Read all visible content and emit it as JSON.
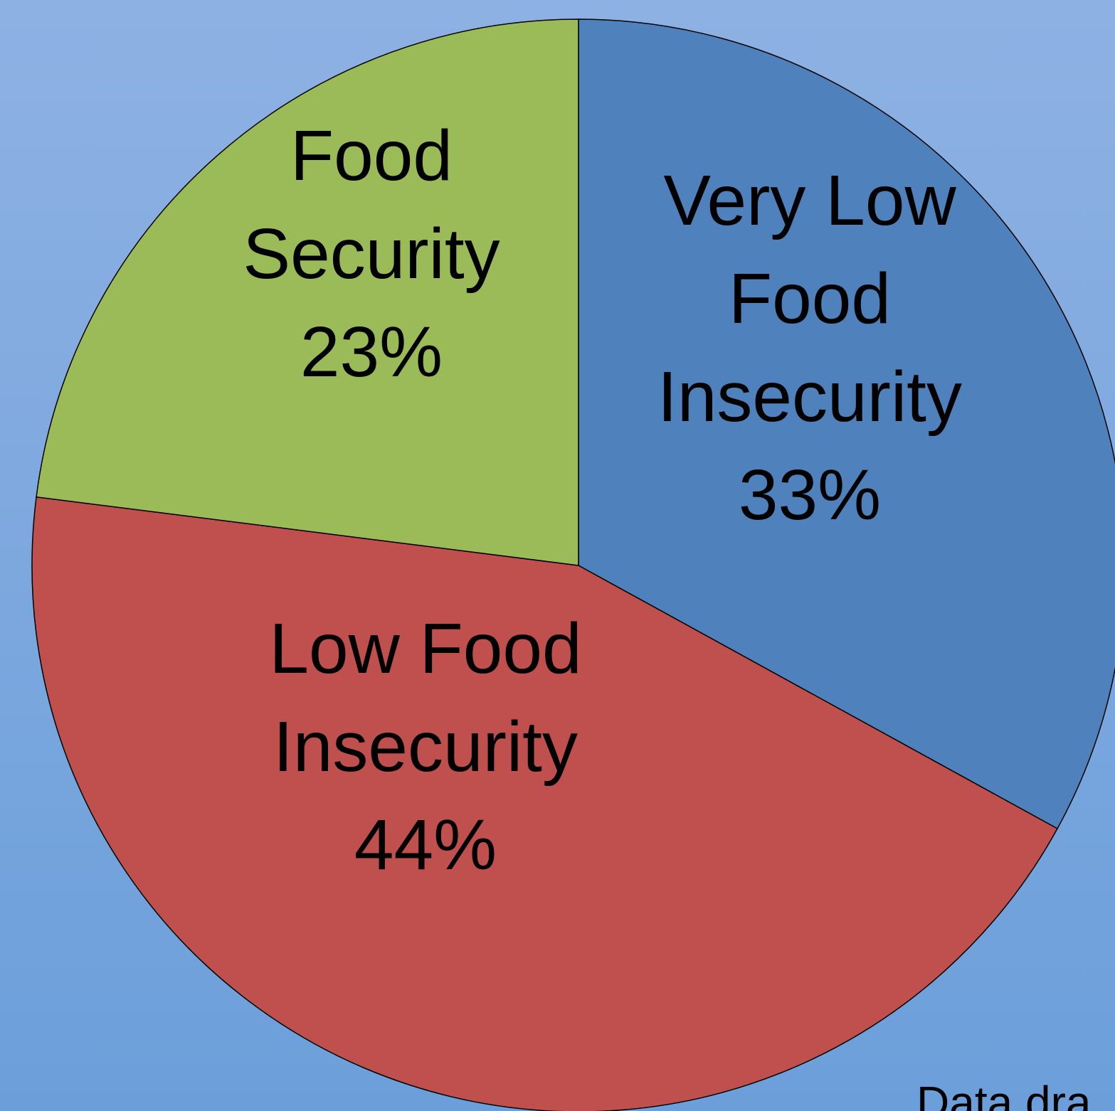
{
  "colors": {
    "background_top": "#8EB1E3",
    "background_bottom": "#6C9FDA",
    "slice_outline": "#000000",
    "label_text": "#000000"
  },
  "footnote": "Data dra",
  "chart_data": {
    "type": "pie",
    "title": "",
    "start_angle_deg": 0,
    "direction": "clockwise",
    "slices": [
      {
        "label_lines": [
          "Very Low",
          "Food",
          "Insecurity",
          "33%"
        ],
        "category": "Very Low Food Insecurity",
        "value": 33,
        "color": "#4F81BD"
      },
      {
        "label_lines": [
          "Low Food",
          "Insecurity",
          "44%"
        ],
        "category": "Low Food Insecurity",
        "value": 44,
        "color": "#C0504D"
      },
      {
        "label_lines": [
          "Food",
          "Security",
          "23%"
        ],
        "category": "Food Security",
        "value": 23,
        "color": "#9BBB59"
      }
    ]
  }
}
